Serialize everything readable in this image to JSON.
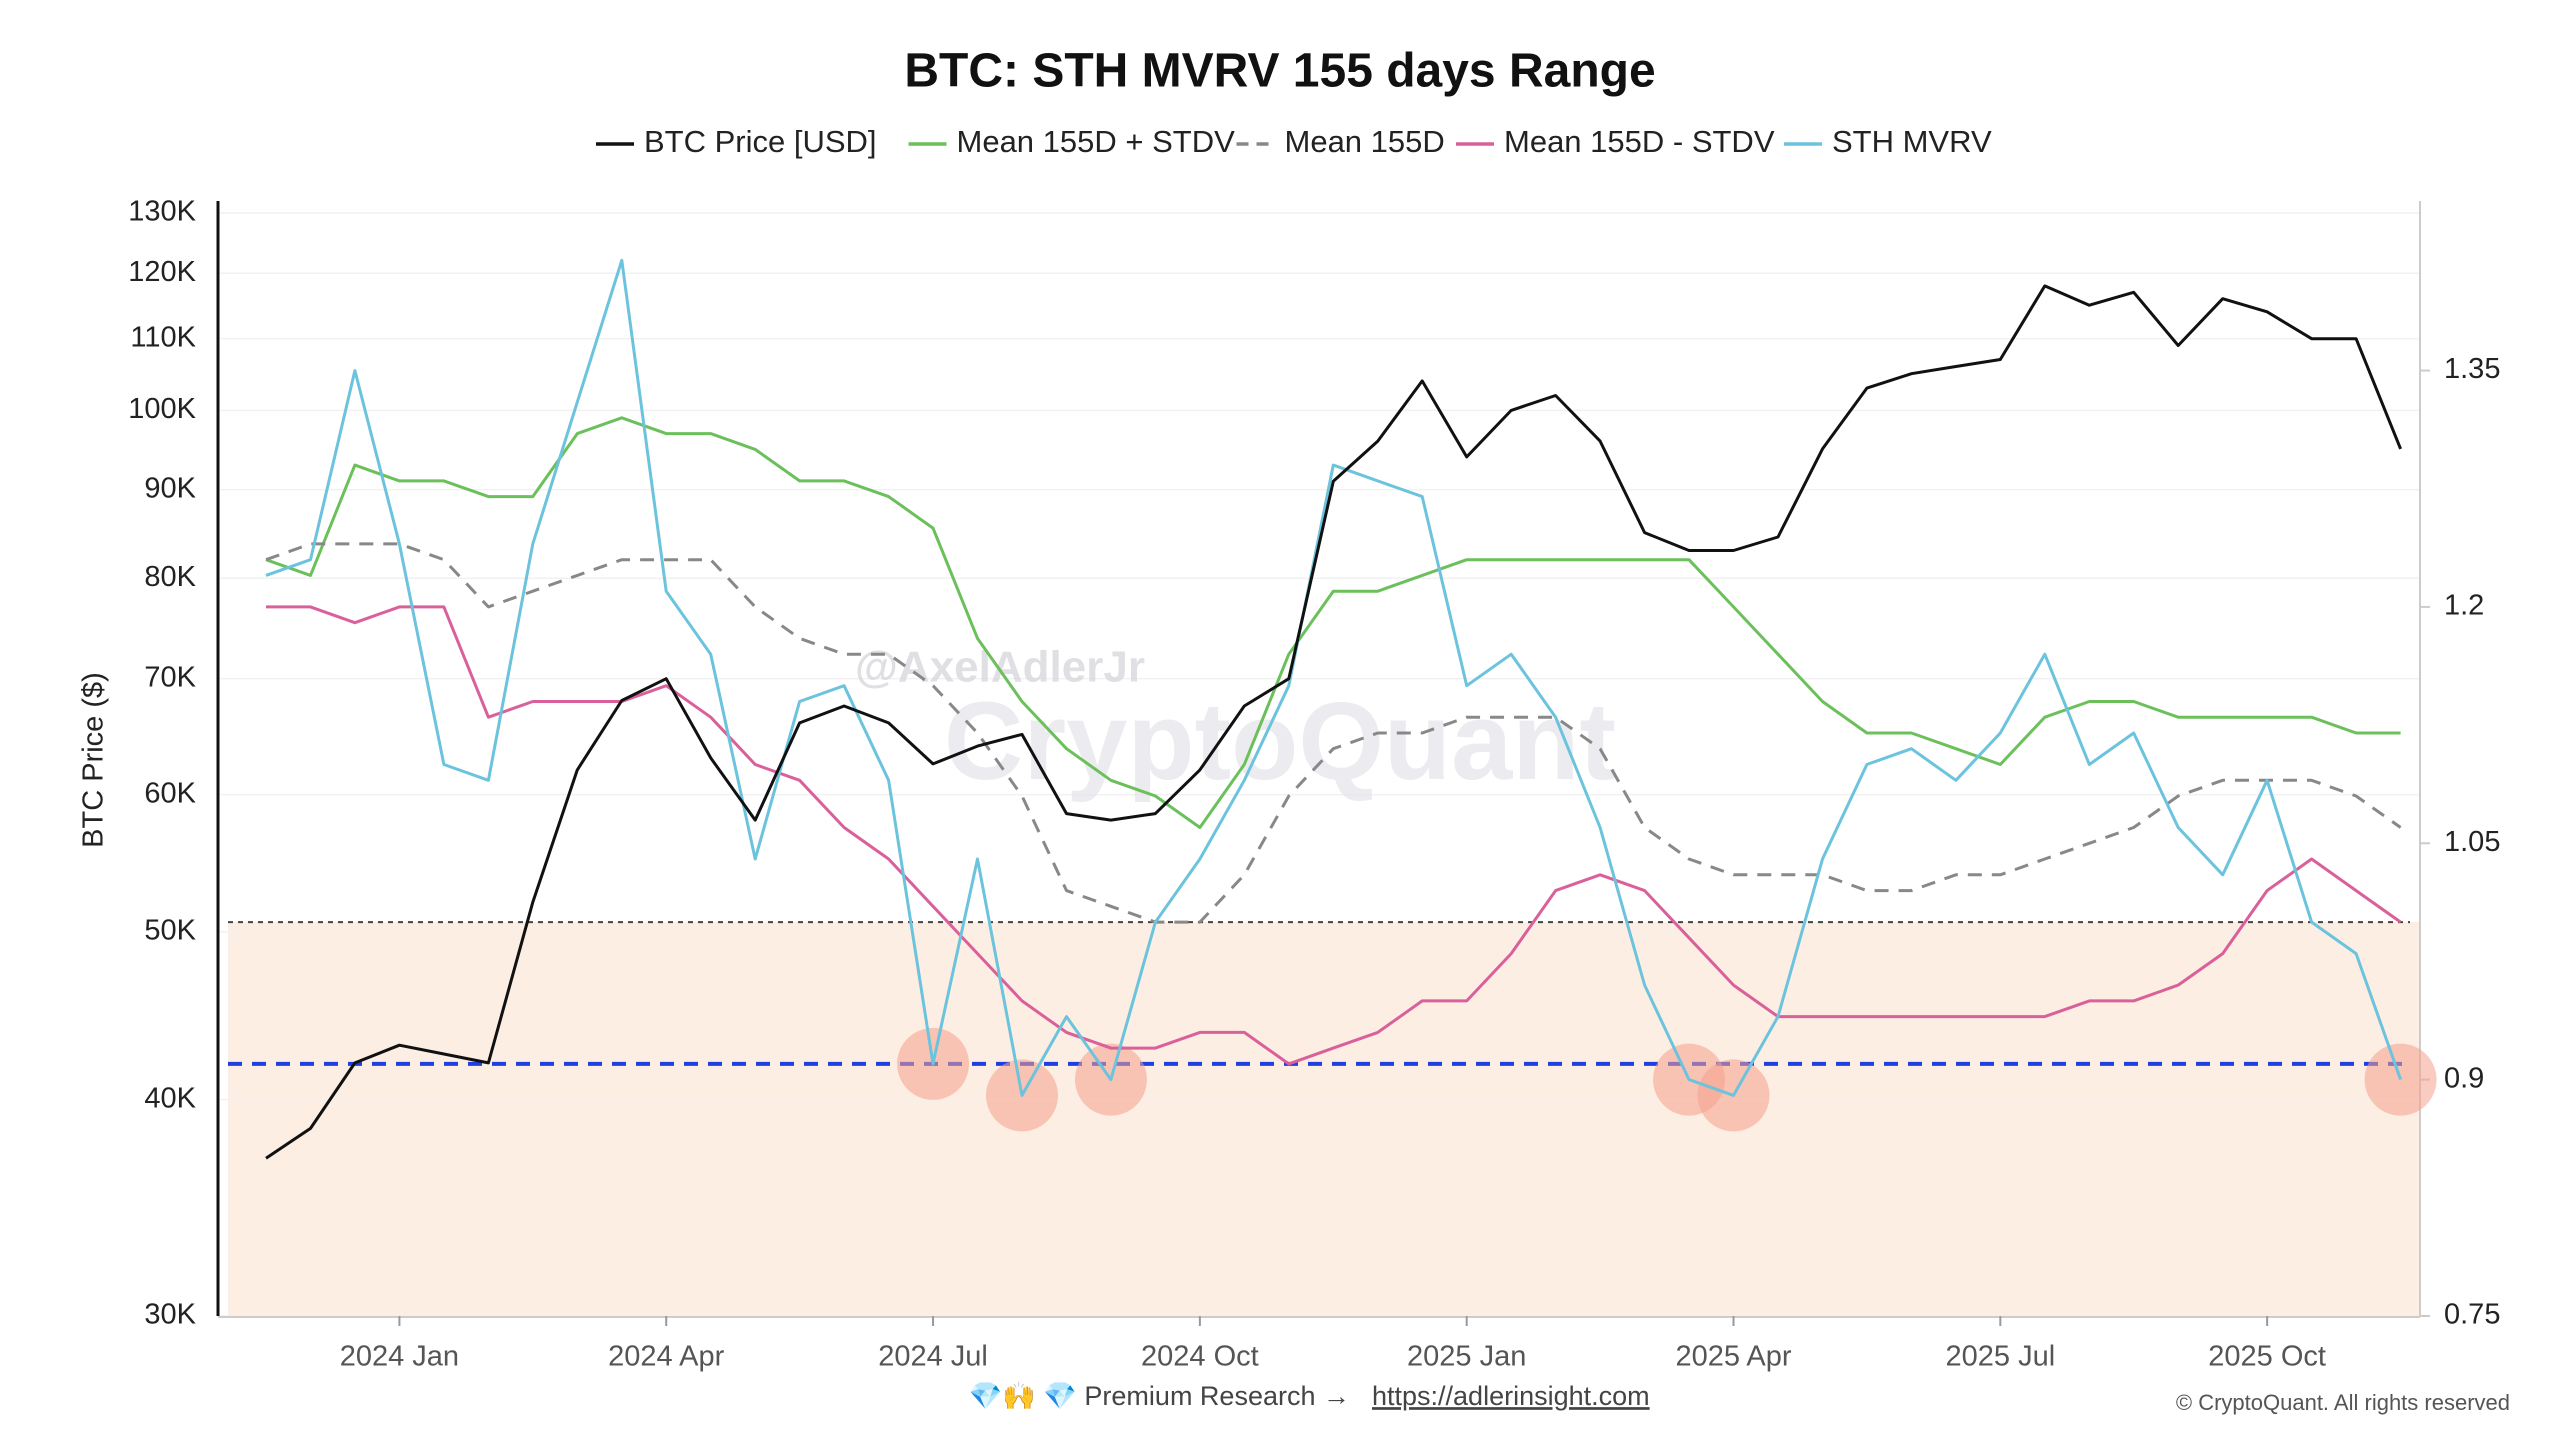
{
  "chart_data": {
    "type": "line",
    "title": "BTC: STH MVRV 155 days Range",
    "y_label": "BTC Price ($)",
    "watermark_handle": "@AxelAdlerJr",
    "watermark": "CryptoQuant",
    "footer": "💎🙌 💎 Premium Research →",
    "footer_link": "https://adlerinsight.com",
    "copyright": "© CryptoQuant. All rights reserved",
    "categories": [
      null,
      null,
      null,
      "2024 Jan",
      null,
      null,
      null,
      null,
      null,
      "2024 Apr",
      null,
      null,
      null,
      null,
      null,
      "2024 Jul",
      null,
      null,
      null,
      null,
      null,
      "2024 Oct",
      null,
      null,
      null,
      null,
      null,
      "2025 Jan",
      null,
      null,
      null,
      null,
      null,
      "2025 Apr",
      null,
      null,
      null,
      null,
      null,
      "2025 Jul",
      null,
      null,
      null,
      null,
      null,
      "2025 Oct",
      null,
      null,
      null
    ],
    "yscale": "log",
    "ylim": [
      30000,
      130000
    ],
    "yticks": [
      {
        "value": 30000,
        "label": "30K"
      },
      {
        "value": 40000,
        "label": "40K"
      },
      {
        "value": 50000,
        "label": "50K"
      },
      {
        "value": 60000,
        "label": "60K"
      },
      {
        "value": 70000,
        "label": "70K"
      },
      {
        "value": 80000,
        "label": "80K"
      },
      {
        "value": 90000,
        "label": "90K"
      },
      {
        "value": 100000,
        "label": "100K"
      },
      {
        "value": 110000,
        "label": "110K"
      },
      {
        "value": 120000,
        "label": "120K"
      },
      {
        "value": 130000,
        "label": "130K"
      }
    ],
    "y2lim": [
      0.75,
      1.45
    ],
    "y2ticks": [
      0.75,
      0.9,
      1.05,
      1.2,
      1.35
    ],
    "grid": true,
    "legend": "top",
    "reference_lines": [
      {
        "value": 1.0,
        "color": "#444444",
        "style": "dotted",
        "fill_below": "#fdeee3"
      },
      {
        "value": 0.91,
        "color": "#1f3fe0",
        "style": "dashed"
      }
    ],
    "highlight_color": "#f5a08c",
    "series": [
      {
        "name": "BTC Price [USD]",
        "color": "#111111",
        "axis": "y",
        "style": "solid",
        "values": [
          37000,
          38500,
          42000,
          43000,
          42500,
          42000,
          52000,
          62000,
          68000,
          70000,
          63000,
          58000,
          66000,
          67500,
          66000,
          62500,
          64000,
          65000,
          58500,
          58000,
          58500,
          62000,
          67500,
          70000,
          91000,
          96000,
          104000,
          94000,
          100000,
          102000,
          96000,
          85000,
          83000,
          83000,
          84500,
          95000,
          103000,
          105000,
          106000,
          107000,
          118000,
          115000,
          117000,
          109000,
          116000,
          114000,
          110000,
          110000,
          95000
        ]
      },
      {
        "name": "Mean 155D + STDV",
        "color": "#6cc05c",
        "axis": "y2",
        "style": "solid",
        "values": [
          1.23,
          1.22,
          1.29,
          1.28,
          1.28,
          1.27,
          1.27,
          1.31,
          1.32,
          1.31,
          1.31,
          1.3,
          1.28,
          1.28,
          1.27,
          1.25,
          1.18,
          1.14,
          1.11,
          1.09,
          1.08,
          1.06,
          1.1,
          1.17,
          1.21,
          1.21,
          1.22,
          1.23,
          1.23,
          1.23,
          1.23,
          1.23,
          1.23,
          1.2,
          1.17,
          1.14,
          1.12,
          1.12,
          1.11,
          1.1,
          1.13,
          1.14,
          1.14,
          1.13,
          1.13,
          1.13,
          1.13,
          1.12,
          1.12
        ]
      },
      {
        "name": "Mean 155D",
        "color": "#888888",
        "axis": "y2",
        "style": "dashed",
        "values": [
          1.23,
          1.24,
          1.24,
          1.24,
          1.23,
          1.2,
          1.21,
          1.22,
          1.23,
          1.23,
          1.23,
          1.2,
          1.18,
          1.17,
          1.17,
          1.15,
          1.12,
          1.08,
          1.02,
          1.01,
          1.0,
          1.0,
          1.03,
          1.08,
          1.11,
          1.12,
          1.12,
          1.13,
          1.13,
          1.13,
          1.11,
          1.06,
          1.04,
          1.03,
          1.03,
          1.03,
          1.02,
          1.02,
          1.03,
          1.03,
          1.04,
          1.05,
          1.06,
          1.08,
          1.09,
          1.09,
          1.09,
          1.08,
          1.06
        ]
      },
      {
        "name": "Mean 155D - STDV",
        "color": "#d9609a",
        "axis": "y2",
        "style": "solid",
        "values": [
          1.2,
          1.2,
          1.19,
          1.2,
          1.2,
          1.13,
          1.14,
          1.14,
          1.14,
          1.15,
          1.13,
          1.1,
          1.09,
          1.06,
          1.04,
          1.01,
          0.98,
          0.95,
          0.93,
          0.92,
          0.92,
          0.93,
          0.93,
          0.91,
          0.92,
          0.93,
          0.95,
          0.95,
          0.98,
          1.02,
          1.03,
          1.02,
          0.99,
          0.96,
          0.94,
          0.94,
          0.94,
          0.94,
          0.94,
          0.94,
          0.94,
          0.95,
          0.95,
          0.96,
          0.98,
          1.02,
          1.04,
          1.02,
          1.0
        ]
      },
      {
        "name": "STH MVRV",
        "color": "#6cc3dd",
        "axis": "y2",
        "style": "solid",
        "highlight_at_or_below": 1,
        "values": [
          1.22,
          1.23,
          1.35,
          1.24,
          1.1,
          1.09,
          1.24,
          1.33,
          1.42,
          1.21,
          1.17,
          1.04,
          1.14,
          1.15,
          1.09,
          0.91,
          1.04,
          0.89,
          0.94,
          0.9,
          1.0,
          1.04,
          1.09,
          1.15,
          1.29,
          1.28,
          1.27,
          1.15,
          1.17,
          1.13,
          1.06,
          0.96,
          0.9,
          0.89,
          0.94,
          1.04,
          1.1,
          1.11,
          1.09,
          1.12,
          1.17,
          1.1,
          1.12,
          1.06,
          1.03,
          1.09,
          1.0,
          0.98,
          0.9
        ]
      }
    ]
  }
}
